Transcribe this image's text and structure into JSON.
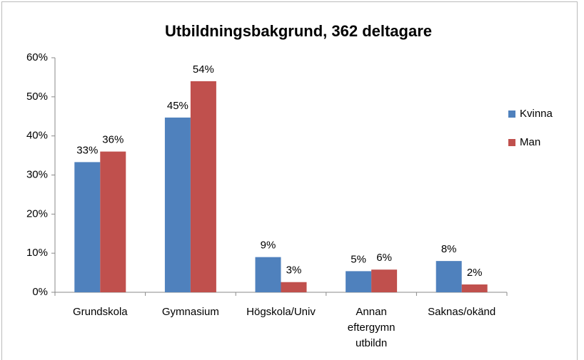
{
  "chart_data": {
    "type": "bar",
    "title": "Utbildningsbakgrund, 362 deltagare",
    "categories": [
      "Grundskola",
      "Gymnasium",
      "Högskola/Univ",
      "Annan eftergymn utbildn",
      "Saknas/okänd"
    ],
    "series": [
      {
        "name": "Kvinna",
        "color": "#4f81bd",
        "values": [
          33.3,
          44.7,
          9,
          5.4,
          8
        ],
        "value_labels": [
          "33%",
          "45%",
          "9%",
          "5%",
          "8%"
        ]
      },
      {
        "name": "Man",
        "color": "#c0504d",
        "values": [
          36,
          54,
          2.6,
          5.8,
          2
        ],
        "value_labels": [
          "36%",
          "54%",
          "3%",
          "6%",
          "2%"
        ]
      }
    ],
    "ylim": [
      0,
      60
    ],
    "yticks": [
      {
        "value": 0,
        "label": "0%"
      },
      {
        "value": 10,
        "label": "10%"
      },
      {
        "value": 20,
        "label": "20%"
      },
      {
        "value": 30,
        "label": "30%"
      },
      {
        "value": 40,
        "label": "40%"
      },
      {
        "value": 50,
        "label": "50%"
      },
      {
        "value": 60,
        "label": "60%"
      }
    ],
    "grid": false,
    "legend": "right"
  }
}
